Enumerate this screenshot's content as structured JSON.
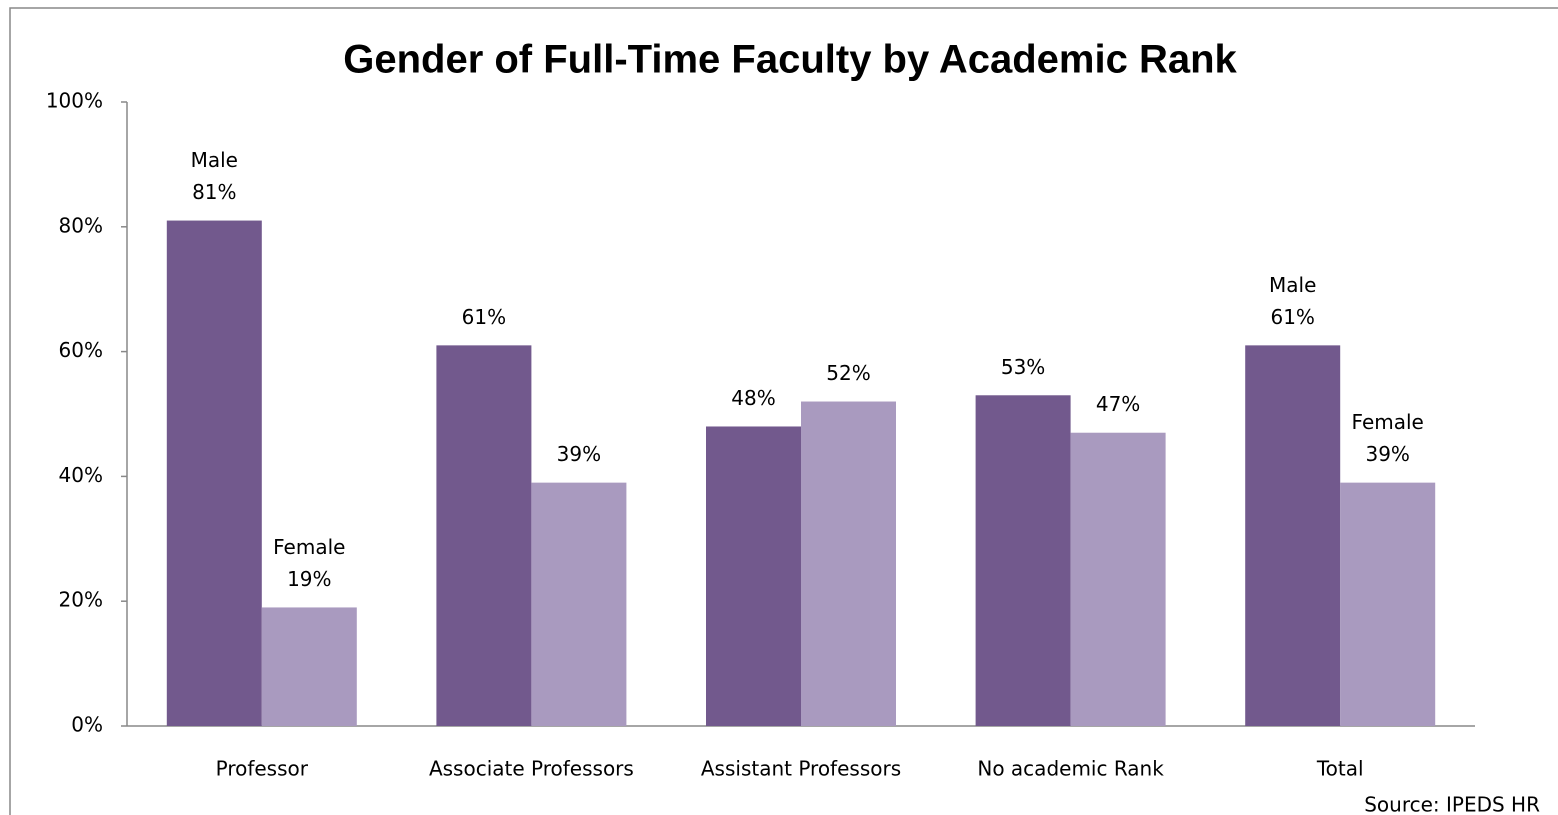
{
  "chart_data": {
    "type": "bar",
    "title": "Gender of Full-Time Faculty by Academic Rank",
    "categories": [
      "Professor",
      "Associate Professors",
      "Assistant Professors",
      "No academic Rank",
      "Total"
    ],
    "series": [
      {
        "name": "Male",
        "color": "#72598d",
        "values": [
          81,
          61,
          48,
          53,
          61
        ],
        "value_labels": [
          "81%",
          "61%",
          "48%",
          "53%",
          "61%"
        ]
      },
      {
        "name": "Female",
        "color": "#a99abf",
        "values": [
          19,
          39,
          52,
          47,
          39
        ],
        "value_labels": [
          "19%",
          "39%",
          "52%",
          "47%",
          "39%"
        ]
      }
    ],
    "ylim": [
      0,
      100
    ],
    "yticks": [
      {
        "value": 0,
        "label": "0%"
      },
      {
        "value": 20,
        "label": "20%"
      },
      {
        "value": 40,
        "label": "40%"
      },
      {
        "value": 60,
        "label": "60%"
      },
      {
        "value": 80,
        "label": "80%"
      },
      {
        "value": 100,
        "label": "100%"
      }
    ],
    "source": "Source: IPEDS HR"
  }
}
